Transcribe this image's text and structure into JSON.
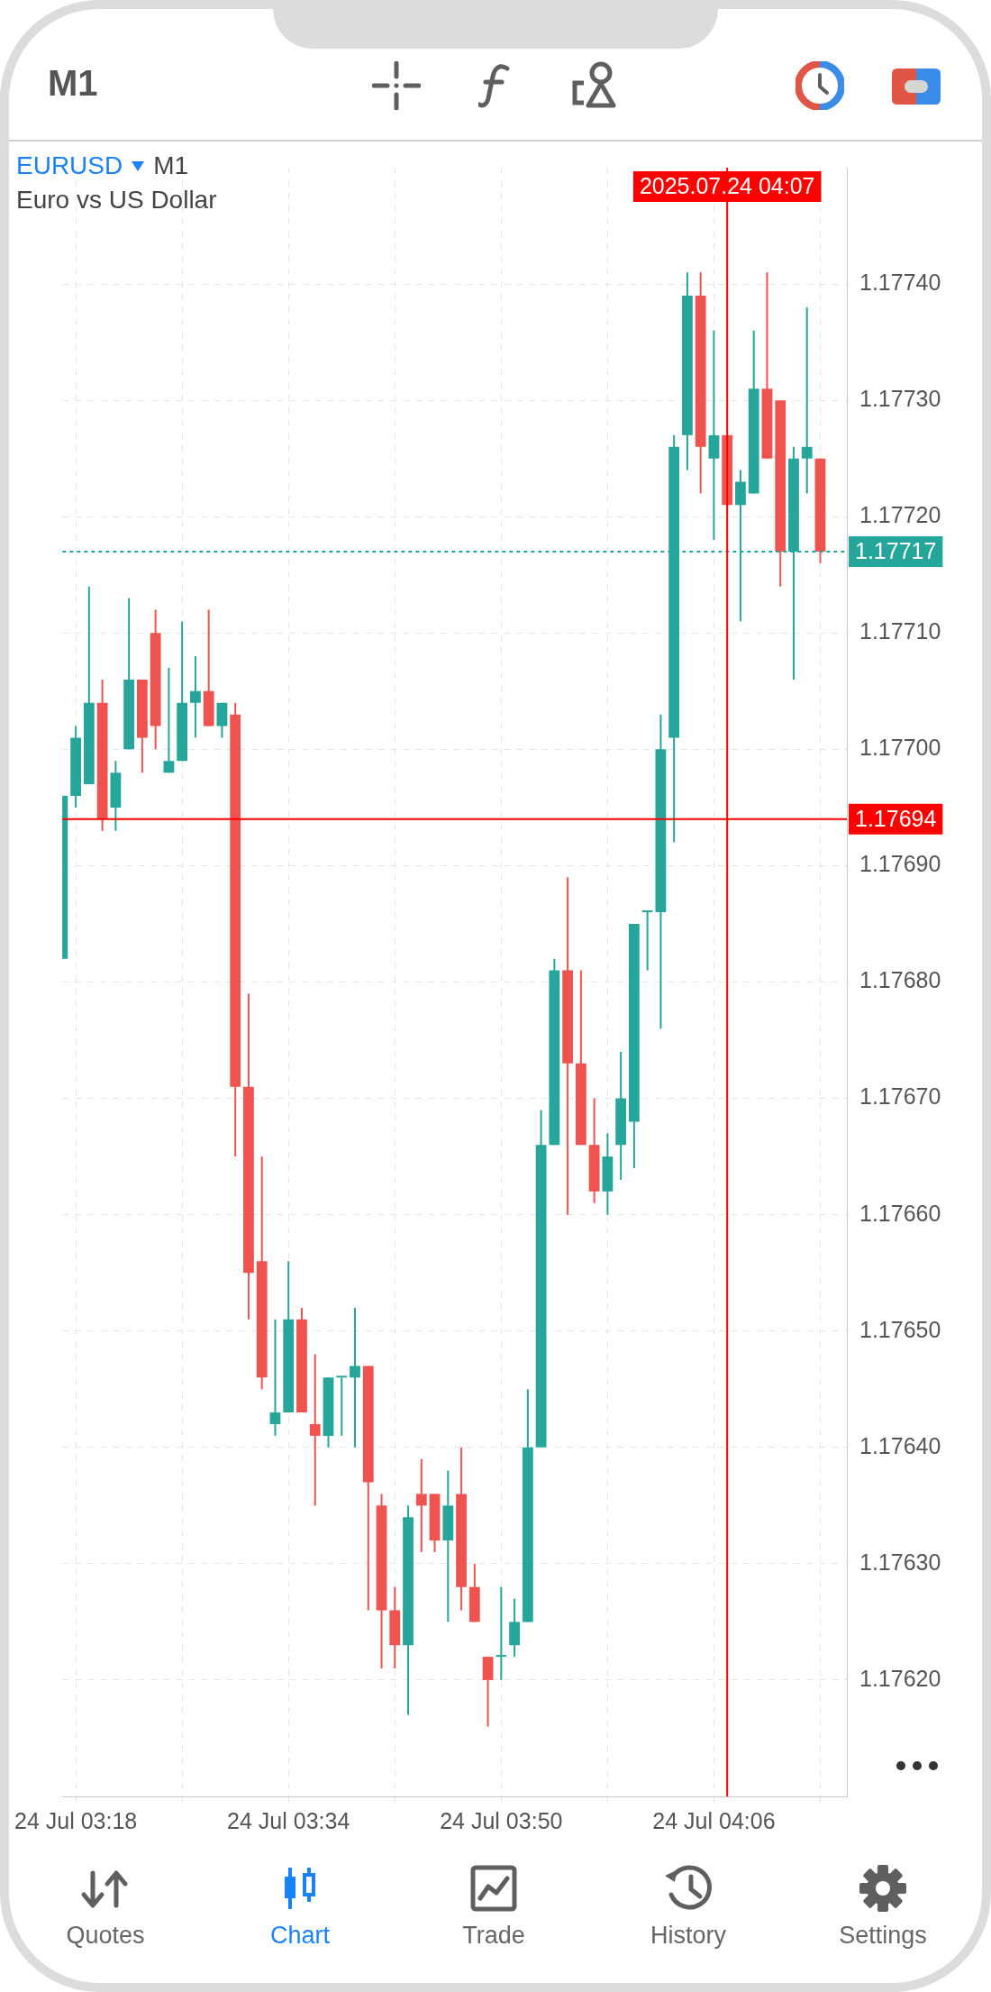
{
  "chart_data": {
    "type": "candlestick",
    "title": "EURUSD",
    "subtitle": "Euro vs US Dollar",
    "annotations": [
      "M1",
      "M1",
      "Quotes",
      "Chart",
      "Trade",
      "History",
      "Settings"
    ],
    "x": [
      "2025-07-24T03:17",
      "2025-07-24T03:18",
      "2025-07-24T03:19",
      "2025-07-24T03:20",
      "2025-07-24T03:21",
      "2025-07-24T03:22",
      "2025-07-24T03:23",
      "2025-07-24T03:24",
      "2025-07-24T03:25",
      "2025-07-24T03:26",
      "2025-07-24T03:27",
      "2025-07-24T03:28",
      "2025-07-24T03:29",
      "2025-07-24T03:30",
      "2025-07-24T03:31",
      "2025-07-24T03:32",
      "2025-07-24T03:33",
      "2025-07-24T03:34",
      "2025-07-24T03:35",
      "2025-07-24T03:36",
      "2025-07-24T03:37",
      "2025-07-24T03:38",
      "2025-07-24T03:39",
      "2025-07-24T03:40",
      "2025-07-24T03:41",
      "2025-07-24T03:42",
      "2025-07-24T03:43",
      "2025-07-24T03:44",
      "2025-07-24T03:45",
      "2025-07-24T03:46",
      "2025-07-24T03:47",
      "2025-07-24T03:48",
      "2025-07-24T03:49",
      "2025-07-24T03:50",
      "2025-07-24T03:51",
      "2025-07-24T03:52",
      "2025-07-24T03:53",
      "2025-07-24T03:54",
      "2025-07-24T03:55",
      "2025-07-24T03:56",
      "2025-07-24T03:57",
      "2025-07-24T03:58",
      "2025-07-24T03:59",
      "2025-07-24T04:00",
      "2025-07-24T04:01",
      "2025-07-24T04:02",
      "2025-07-24T04:03",
      "2025-07-24T04:04",
      "2025-07-24T04:05",
      "2025-07-24T04:06",
      "2025-07-24T04:07",
      "2025-07-24T04:08",
      "2025-07-24T04:09",
      "2025-07-24T04:10",
      "2025-07-24T04:11",
      "2025-07-24T04:12",
      "2025-07-24T04:13",
      "2025-07-24T04:14"
    ],
    "ohlc": [
      [
        1.17682,
        1.17696,
        1.17682,
        1.17696
      ],
      [
        1.17696,
        1.17702,
        1.17695,
        1.17701
      ],
      [
        1.17697,
        1.17714,
        1.17697,
        1.17704
      ],
      [
        1.17704,
        1.17706,
        1.17693,
        1.17694
      ],
      [
        1.17695,
        1.17699,
        1.17693,
        1.17698
      ],
      [
        1.177,
        1.17713,
        1.177,
        1.17706
      ],
      [
        1.17706,
        1.17706,
        1.17698,
        1.17701
      ],
      [
        1.1771,
        1.17712,
        1.177,
        1.17702
      ],
      [
        1.17698,
        1.17707,
        1.17698,
        1.17699
      ],
      [
        1.17699,
        1.17711,
        1.17699,
        1.17704
      ],
      [
        1.17704,
        1.17708,
        1.17701,
        1.17705
      ],
      [
        1.17705,
        1.17712,
        1.17702,
        1.17702
      ],
      [
        1.17702,
        1.17704,
        1.17701,
        1.17704
      ],
      [
        1.17703,
        1.17704,
        1.17665,
        1.17671
      ],
      [
        1.17671,
        1.17679,
        1.17651,
        1.17655
      ],
      [
        1.17656,
        1.17665,
        1.17645,
        1.17646
      ],
      [
        1.17642,
        1.17651,
        1.17641,
        1.17643
      ],
      [
        1.17643,
        1.17656,
        1.17643,
        1.17651
      ],
      [
        1.17651,
        1.17652,
        1.17643,
        1.17643
      ],
      [
        1.17642,
        1.17648,
        1.17635,
        1.17641
      ],
      [
        1.17641,
        1.17646,
        1.1764,
        1.17646
      ],
      [
        1.17646,
        1.17646,
        1.17641,
        1.17646
      ],
      [
        1.17646,
        1.17652,
        1.1764,
        1.17647
      ],
      [
        1.17647,
        1.17647,
        1.17626,
        1.17637
      ],
      [
        1.17635,
        1.17636,
        1.17621,
        1.17626
      ],
      [
        1.17626,
        1.17628,
        1.17621,
        1.17623
      ],
      [
        1.17623,
        1.17635,
        1.17617,
        1.17634
      ],
      [
        1.17636,
        1.17639,
        1.17631,
        1.17635
      ],
      [
        1.17636,
        1.17636,
        1.17631,
        1.17632
      ],
      [
        1.17632,
        1.17638,
        1.17625,
        1.17635
      ],
      [
        1.17636,
        1.1764,
        1.17626,
        1.17628
      ],
      [
        1.17628,
        1.1763,
        1.17625,
        1.17625
      ],
      [
        1.17622,
        1.17622,
        1.17616,
        1.1762
      ],
      [
        1.17622,
        1.17628,
        1.1762,
        1.17622
      ],
      [
        1.17623,
        1.17627,
        1.17622,
        1.17625
      ],
      [
        1.17625,
        1.17645,
        1.17625,
        1.1764
      ],
      [
        1.1764,
        1.17669,
        1.1764,
        1.17666
      ],
      [
        1.17666,
        1.17682,
        1.17666,
        1.17681
      ],
      [
        1.17681,
        1.17689,
        1.1766,
        1.17673
      ],
      [
        1.17673,
        1.17681,
        1.17666,
        1.17666
      ],
      [
        1.17666,
        1.1767,
        1.17661,
        1.17662
      ],
      [
        1.17662,
        1.17667,
        1.1766,
        1.17665
      ],
      [
        1.17666,
        1.17674,
        1.17663,
        1.1767
      ],
      [
        1.17668,
        1.17685,
        1.17664,
        1.17685
      ],
      [
        1.17686,
        1.17686,
        1.17681,
        1.17686
      ],
      [
        1.17686,
        1.17703,
        1.17676,
        1.177
      ],
      [
        1.17701,
        1.17727,
        1.17692,
        1.17726
      ],
      [
        1.17727,
        1.17741,
        1.17724,
        1.17739
      ],
      [
        1.17739,
        1.17741,
        1.17722,
        1.17726
      ],
      [
        1.17725,
        1.17736,
        1.17718,
        1.17727
      ],
      [
        1.17727,
        1.17727,
        1.17721,
        1.17721
      ],
      [
        1.17721,
        1.17724,
        1.17711,
        1.17723
      ],
      [
        1.17722,
        1.17736,
        1.17722,
        1.17731
      ],
      [
        1.17731,
        1.17741,
        1.17725,
        1.17725
      ],
      [
        1.1773,
        1.1773,
        1.17714,
        1.17717
      ],
      [
        1.17717,
        1.17726,
        1.17706,
        1.17725
      ],
      [
        1.17725,
        1.17738,
        1.17722,
        1.17726
      ],
      [
        1.17725,
        1.17725,
        1.17716,
        1.17717
      ]
    ],
    "colors": [
      "#26a69a",
      "#26a69a",
      "#26a69a",
      "#ef5350",
      "#26a69a",
      "#26a69a",
      "#ef5350",
      "#ef5350",
      "#26a69a",
      "#26a69a",
      "#26a69a",
      "#ef5350",
      "#26a69a",
      "#ef5350",
      "#ef5350",
      "#ef5350",
      "#26a69a",
      "#26a69a",
      "#ef5350",
      "#ef5350",
      "#26a69a",
      "#26a69a",
      "#26a69a",
      "#ef5350",
      "#ef5350",
      "#ef5350",
      "#26a69a",
      "#ef5350",
      "#ef5350",
      "#26a69a",
      "#ef5350",
      "#ef5350",
      "#ef5350",
      "#26a69a",
      "#26a69a",
      "#26a69a",
      "#26a69a",
      "#26a69a",
      "#ef5350",
      "#ef5350",
      "#ef5350",
      "#26a69a",
      "#26a69a",
      "#26a69a",
      "#26a69a",
      "#26a69a",
      "#26a69a",
      "#26a69a",
      "#ef5350",
      "#26a69a",
      "#ef5350",
      "#26a69a",
      "#26a69a",
      "#ef5350",
      "#ef5350",
      "#26a69a",
      "#26a69a",
      "#ef5350"
    ],
    "xlim": [
      "2025-07-24T03:17",
      "2025-07-24T04:16"
    ],
    "xticks": [
      {
        "value": "2025-07-24T03:18",
        "label": "24 Jul 03:18"
      },
      {
        "value": "2025-07-24T03:26",
        "label": null
      },
      {
        "value": "2025-07-24T03:34",
        "label": "24 Jul 03:34"
      },
      {
        "value": "2025-07-24T03:42",
        "label": null
      },
      {
        "value": "2025-07-24T03:50",
        "label": "24 Jul 03:50"
      },
      {
        "value": "2025-07-24T03:58",
        "label": null
      },
      {
        "value": "2025-07-24T04:06",
        "label": "24 Jul 04:06"
      },
      {
        "value": "2025-07-24T04:14",
        "label": null
      }
    ],
    "ylim": [
      1.1761,
      1.1775
    ],
    "yticks": [
      {
        "value": 1.1762,
        "label": "1.17620"
      },
      {
        "value": 1.1763,
        "label": "1.17630"
      },
      {
        "value": 1.1764,
        "label": "1.17640"
      },
      {
        "value": 1.1765,
        "label": "1.17650"
      },
      {
        "value": 1.1766,
        "label": "1.17660"
      },
      {
        "value": 1.1767,
        "label": "1.17670"
      },
      {
        "value": 1.1768,
        "label": "1.17680"
      },
      {
        "value": 1.1769,
        "label": "1.17690"
      },
      {
        "value": 1.177,
        "label": "1.17700"
      },
      {
        "value": 1.1771,
        "label": "1.17710"
      },
      {
        "value": 1.1772,
        "label": "1.17720"
      },
      {
        "value": 1.1773,
        "label": "1.17730"
      },
      {
        "value": 1.1774,
        "label": "1.17740"
      }
    ],
    "grid": true,
    "ref_lines": [
      {
        "axis": "y",
        "value": 1.17717,
        "label": "1.17717",
        "color": "#26a69a",
        "line_style": "dotted"
      },
      {
        "axis": "y",
        "value": 1.17694,
        "label": "1.17694",
        "color": "#ff0000",
        "line_style": "solid"
      },
      {
        "axis": "x",
        "value": "2025-07-24T04:07",
        "label": "2025.07.24 04:07",
        "color": "#ff0000",
        "line_style": "solid"
      }
    ]
  }
}
